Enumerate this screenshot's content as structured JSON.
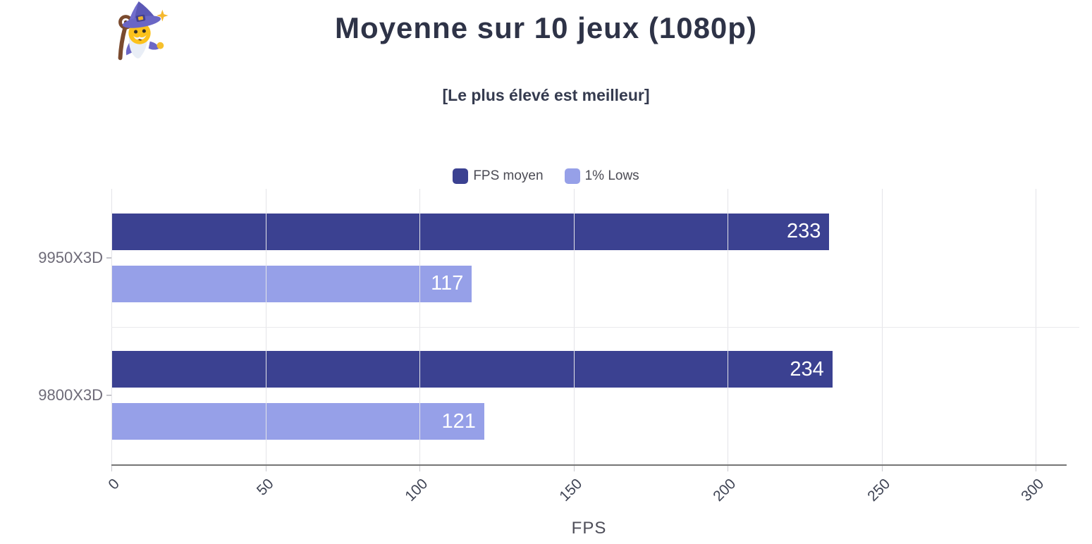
{
  "header": {
    "mascot_icon": "wizard-mascot"
  },
  "chart_data": {
    "type": "bar",
    "orientation": "horizontal",
    "title": "Moyenne sur 10 jeux (1080p)",
    "subtitle": "[Le plus élevé est meilleur]",
    "xlabel": "FPS",
    "categories": [
      "9950X3D",
      "9800X3D"
    ],
    "series": [
      {
        "name": "FPS moyen",
        "color": "#3b4191",
        "values": [
          233,
          234
        ]
      },
      {
        "name": "1% Lows",
        "color": "#96a0e8",
        "values": [
          117,
          121
        ]
      }
    ],
    "xlim": [
      0,
      310
    ],
    "xticks": [
      0,
      50,
      100,
      150,
      200,
      250,
      300
    ],
    "grid": true,
    "legend_position": "top",
    "value_label_color": "#ffffff"
  }
}
